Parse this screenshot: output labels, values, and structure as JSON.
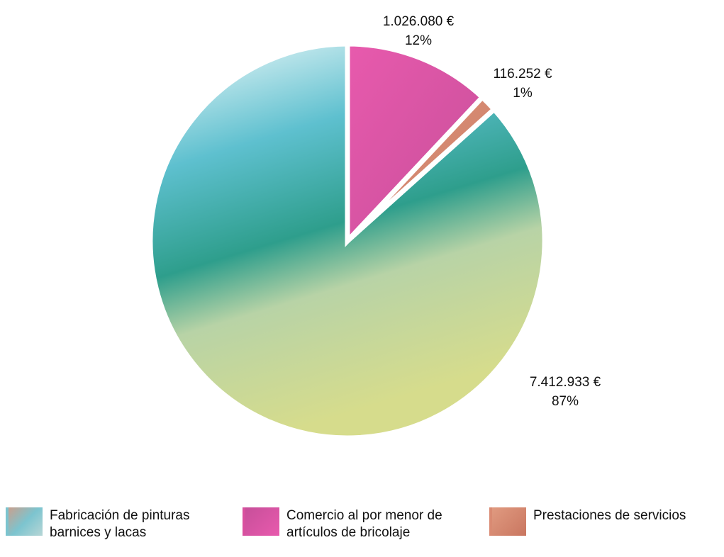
{
  "chart_data": {
    "type": "pie",
    "categories": [
      "Fabricación de pinturas barnices y lacas",
      "Comercio al por menor de artículos de bricolaje",
      "Prestaciones de servicios"
    ],
    "values": [
      7412933,
      1026080,
      116252
    ],
    "value_labels": [
      "7.412.933 €",
      "1.026.080 €",
      "116.252 €"
    ],
    "percentages": [
      87,
      12,
      1
    ],
    "percentage_labels": [
      "87%",
      "12%",
      "1%"
    ],
    "colors": [
      "#7cc4cf",
      "#d9509f",
      "#d98a72"
    ],
    "legend": "bottom"
  }
}
